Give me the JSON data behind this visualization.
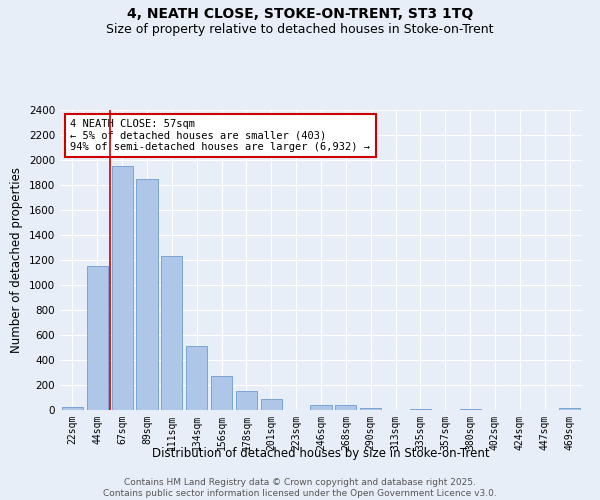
{
  "title": "4, NEATH CLOSE, STOKE-ON-TRENT, ST3 1TQ",
  "subtitle": "Size of property relative to detached houses in Stoke-on-Trent",
  "xlabel": "Distribution of detached houses by size in Stoke-on-Trent",
  "ylabel": "Number of detached properties",
  "categories": [
    "22sqm",
    "44sqm",
    "67sqm",
    "89sqm",
    "111sqm",
    "134sqm",
    "156sqm",
    "178sqm",
    "201sqm",
    "223sqm",
    "246sqm",
    "268sqm",
    "290sqm",
    "313sqm",
    "335sqm",
    "357sqm",
    "380sqm",
    "402sqm",
    "424sqm",
    "447sqm",
    "469sqm"
  ],
  "values": [
    25,
    1150,
    1950,
    1850,
    1230,
    515,
    270,
    150,
    90,
    0,
    42,
    40,
    18,
    0,
    12,
    0,
    5,
    0,
    3,
    0,
    18
  ],
  "bar_color": "#aec6e8",
  "bar_edge_color": "#5b8fc9",
  "bg_color": "#e8eef7",
  "grid_color": "#ffffff",
  "vline_color": "#cc0000",
  "vline_x": 1.5,
  "annotation_text": "4 NEATH CLOSE: 57sqm\n← 5% of detached houses are smaller (403)\n94% of semi-detached houses are larger (6,932) →",
  "annotation_box_color": "#ffffff",
  "annotation_box_edge": "#cc0000",
  "footer": "Contains HM Land Registry data © Crown copyright and database right 2025.\nContains public sector information licensed under the Open Government Licence v3.0.",
  "ylim": [
    0,
    2400
  ],
  "yticks": [
    0,
    200,
    400,
    600,
    800,
    1000,
    1200,
    1400,
    1600,
    1800,
    2000,
    2200,
    2400
  ]
}
